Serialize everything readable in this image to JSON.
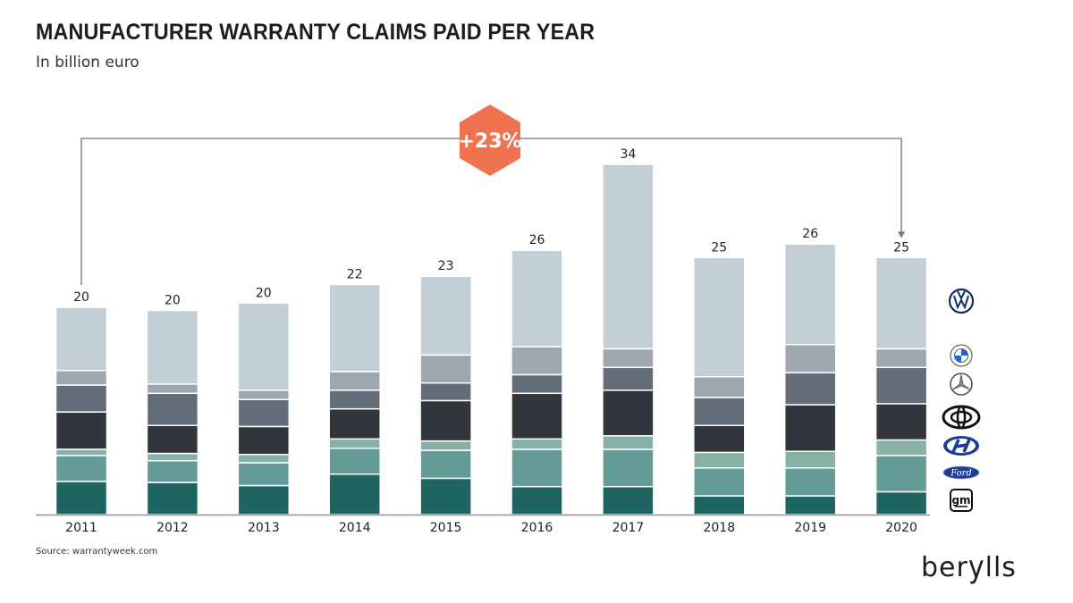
{
  "title": "MANUFACTURER WARRANTY CLAIMS PAID PER YEAR",
  "subtitle": "In billion euro",
  "source": "Source: warrantyweek.com",
  "brand": "berylls",
  "chart_data": {
    "type": "bar",
    "stacked": true,
    "categories": [
      "2011",
      "2012",
      "2013",
      "2014",
      "2015",
      "2016",
      "2017",
      "2018",
      "2019",
      "2020"
    ],
    "totals": [
      20,
      20,
      20,
      22,
      23,
      26,
      34,
      25,
      26,
      25
    ],
    "annotation": "+23%",
    "annotation_color": "#F07350",
    "series": [
      {
        "name": "GM",
        "logo": "gm-logo",
        "color": "#1E6561",
        "values": [
          3.2,
          3.1,
          2.8,
          3.9,
          3.5,
          2.7,
          2.7,
          1.8,
          1.8,
          2.2
        ]
      },
      {
        "name": "Ford",
        "logo": "ford-logo",
        "color": "#649B96",
        "values": [
          2.5,
          2.1,
          2.2,
          2.5,
          2.7,
          3.6,
          3.6,
          2.7,
          2.7,
          3.5
        ]
      },
      {
        "name": "Hyundai",
        "logo": "hyundai-logo",
        "color": "#88B1A5",
        "values": [
          0.6,
          0.7,
          0.8,
          0.9,
          0.9,
          1.0,
          1.3,
          1.5,
          1.6,
          1.5
        ]
      },
      {
        "name": "Toyota",
        "logo": "toyota-logo",
        "color": "#31353C",
        "values": [
          3.6,
          2.7,
          2.7,
          2.9,
          3.9,
          4.4,
          4.4,
          2.6,
          4.5,
          3.5
        ]
      },
      {
        "name": "Mercedes-Benz",
        "logo": "mercedes-logo",
        "color": "#626D79",
        "values": [
          2.6,
          3.1,
          2.6,
          1.8,
          1.7,
          1.8,
          2.2,
          2.7,
          3.1,
          3.5
        ]
      },
      {
        "name": "BMW",
        "logo": "bmw-logo",
        "color": "#9CA7AF",
        "values": [
          1.4,
          0.9,
          0.9,
          1.8,
          2.7,
          2.7,
          1.8,
          2.0,
          2.7,
          1.8
        ]
      },
      {
        "name": "Volkswagen",
        "logo": "vw-logo",
        "color": "#C3CFD7",
        "values": [
          6.1,
          7.1,
          8.4,
          8.4,
          7.6,
          9.3,
          17.8,
          11.5,
          9.7,
          8.8
        ]
      }
    ],
    "ylim": [
      0,
      36
    ],
    "grid": false,
    "legend": "right (logos)"
  }
}
